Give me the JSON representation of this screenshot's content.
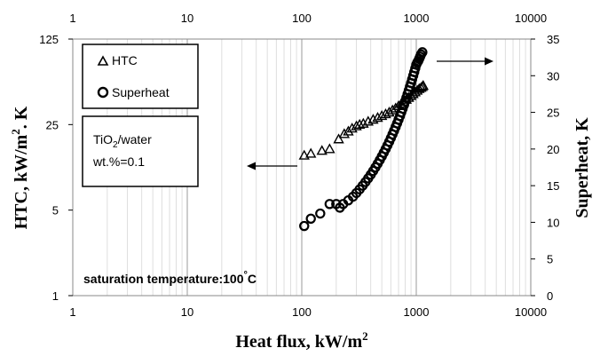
{
  "chart_data": {
    "type": "scatter",
    "x_scale": "log",
    "xlim": [
      1,
      10000
    ],
    "x_ticks": [
      "1",
      "10",
      "100",
      "1000",
      "10000"
    ],
    "xlabel": "Heat flux, kW/m",
    "xlabel_sup": "2",
    "y_left": {
      "scale": "log",
      "ylim": [
        1,
        125
      ],
      "ticks": [
        "1",
        "5",
        "25",
        "125"
      ],
      "label_prefix": "HTC, kW/m",
      "label_sup": "2",
      "label_suffix": ". K"
    },
    "y_right": {
      "scale": "linear",
      "ylim": [
        0,
        35
      ],
      "ticks": [
        "0",
        "5",
        "10",
        "15",
        "20",
        "25",
        "30",
        "35"
      ],
      "label": "Superheat, K"
    },
    "legend": {
      "position": "top-left",
      "items": [
        {
          "marker": "triangle",
          "label": "HTC"
        },
        {
          "marker": "circle",
          "label": "Superheat"
        }
      ]
    },
    "info_box": {
      "line1_a": "TiO",
      "line1_sub": "2",
      "line1_b": "/water",
      "line2": "wt.%=0.1"
    },
    "annotation": {
      "text_a": "saturation temperature:100",
      "text_deg": "°",
      "text_b": "C"
    },
    "grid": "vertical minor and major lines on x",
    "series": [
      {
        "name": "HTC",
        "axis": "left",
        "marker": "triangle",
        "x": [
          105,
          120,
          150,
          175,
          210,
          235,
          255,
          275,
          300,
          320,
          345,
          380,
          420,
          460,
          500,
          540,
          580,
          620,
          660,
          700,
          740,
          780,
          820,
          860,
          900,
          940,
          980,
          1020,
          1060,
          1100,
          1130,
          1150
        ],
        "y": [
          14,
          14.5,
          15.3,
          15.8,
          19,
          21,
          22,
          23.3,
          24.3,
          25,
          25.5,
          26.5,
          27.5,
          28.5,
          29.5,
          30.5,
          31.5,
          32.8,
          34,
          35.5,
          37,
          38.5,
          40,
          41.5,
          43,
          44.5,
          46,
          47.5,
          49,
          50,
          51,
          52
        ]
      },
      {
        "name": "Superheat",
        "axis": "right",
        "marker": "circle",
        "x": [
          105,
          120,
          145,
          175,
          200,
          215,
          230,
          255,
          280,
          300,
          320,
          340,
          360,
          380,
          400,
          420,
          440,
          460,
          480,
          500,
          520,
          540,
          560,
          580,
          600,
          620,
          640,
          660,
          680,
          700,
          720,
          740,
          760,
          780,
          800,
          820,
          840,
          860,
          880,
          900,
          920,
          940,
          960,
          980,
          1000,
          1020,
          1040,
          1060,
          1080,
          1100,
          1130
        ],
        "y": [
          9.5,
          10.5,
          11.2,
          12.5,
          12.5,
          12,
          12.5,
          13,
          13.5,
          14,
          14.5,
          15,
          15.5,
          16,
          16.5,
          17,
          17.5,
          18,
          18.5,
          19,
          19.5,
          20,
          20.5,
          21,
          21.5,
          22,
          22.5,
          23,
          23.5,
          24,
          24.5,
          25,
          25.5,
          26,
          26.5,
          27,
          27.5,
          28,
          28.5,
          29,
          29.5,
          30,
          30.5,
          31,
          31.5,
          31.8,
          32,
          32.3,
          32.6,
          32.9,
          33.2
        ]
      }
    ]
  }
}
